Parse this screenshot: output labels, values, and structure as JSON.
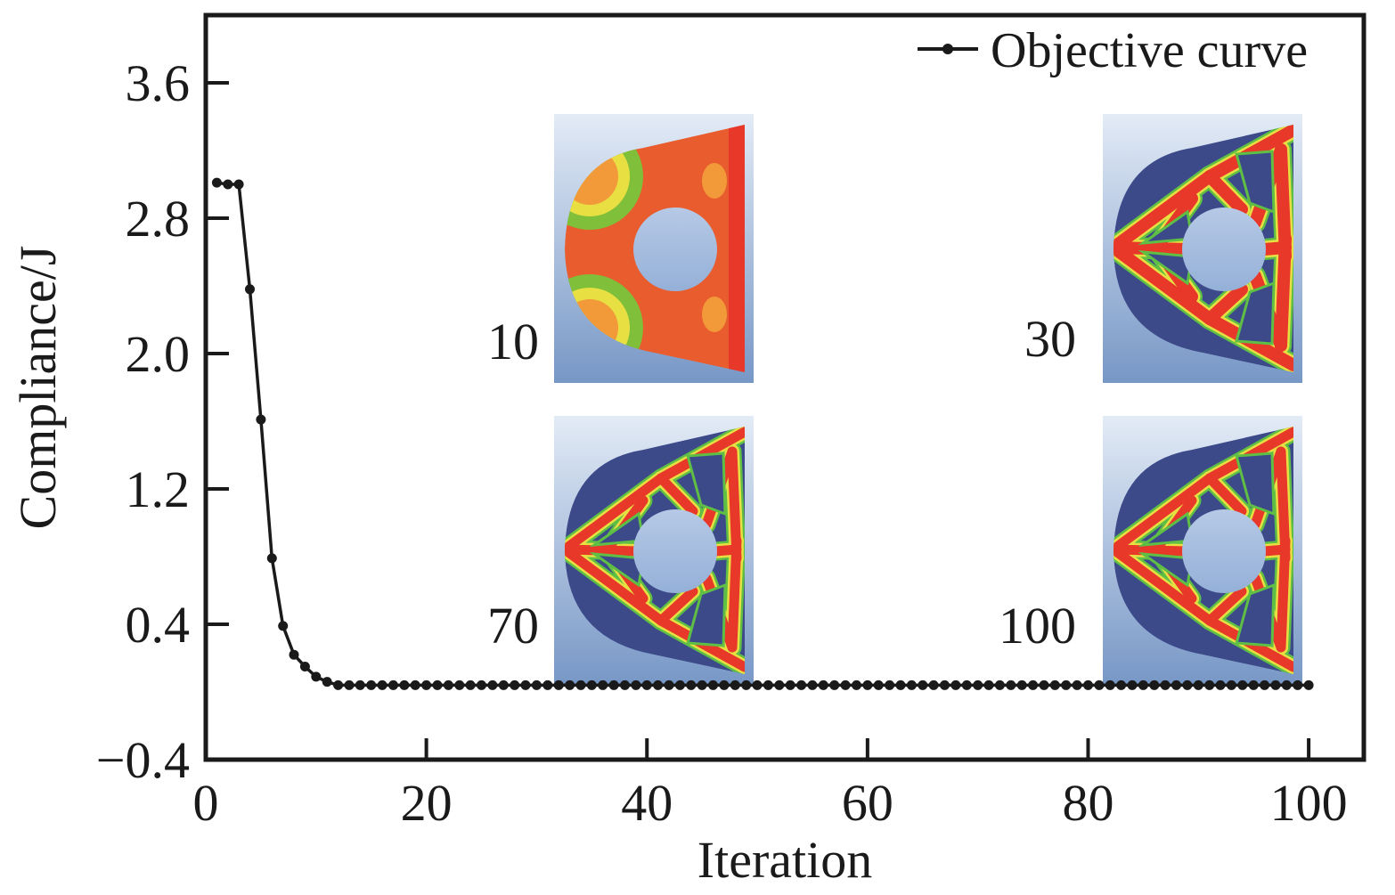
{
  "chart_data": {
    "type": "line",
    "title": "",
    "xlabel": "Iteration",
    "ylabel": "Compliance/J",
    "xlim": [
      0,
      105
    ],
    "ylim": [
      -0.4,
      4.0
    ],
    "xticks": [
      0,
      20,
      40,
      60,
      80,
      100
    ],
    "xtick_labels": [
      "0",
      "20",
      "40",
      "60",
      "80",
      "100"
    ],
    "yticks": [
      -0.4,
      0.4,
      1.2,
      2.0,
      2.8,
      3.6
    ],
    "ytick_labels": [
      "−0.4",
      "0.4",
      "1.2",
      "2.0",
      "2.8",
      "3.6"
    ],
    "grid": false,
    "legend_position": "top-right",
    "series": [
      {
        "name": "Objective curve",
        "color": "#1a1a1a",
        "x": [
          1,
          2,
          3,
          4,
          5,
          6,
          7,
          8,
          9,
          10,
          11,
          12,
          13,
          14,
          15,
          16,
          17,
          18,
          19,
          20,
          21,
          22,
          23,
          24,
          25,
          26,
          27,
          28,
          29,
          30,
          31,
          32,
          33,
          34,
          35,
          36,
          37,
          38,
          39,
          40,
          41,
          42,
          43,
          44,
          45,
          46,
          47,
          48,
          49,
          50,
          51,
          52,
          53,
          54,
          55,
          56,
          57,
          58,
          59,
          60,
          61,
          62,
          63,
          64,
          65,
          66,
          67,
          68,
          69,
          70,
          71,
          72,
          73,
          74,
          75,
          76,
          77,
          78,
          79,
          80,
          81,
          82,
          83,
          84,
          85,
          86,
          87,
          88,
          89,
          90,
          91,
          92,
          93,
          94,
          95,
          96,
          97,
          98,
          99,
          100
        ],
        "y": [
          3.01,
          3.0,
          3.0,
          2.38,
          1.61,
          0.79,
          0.39,
          0.22,
          0.15,
          0.09,
          0.06,
          0.04,
          0.04,
          0.04,
          0.04,
          0.04,
          0.04,
          0.04,
          0.04,
          0.04,
          0.04,
          0.04,
          0.04,
          0.04,
          0.04,
          0.04,
          0.04,
          0.04,
          0.04,
          0.04,
          0.04,
          0.04,
          0.04,
          0.04,
          0.04,
          0.04,
          0.04,
          0.04,
          0.04,
          0.04,
          0.04,
          0.04,
          0.04,
          0.04,
          0.04,
          0.04,
          0.04,
          0.04,
          0.04,
          0.04,
          0.04,
          0.04,
          0.04,
          0.04,
          0.04,
          0.04,
          0.04,
          0.04,
          0.04,
          0.04,
          0.04,
          0.04,
          0.04,
          0.04,
          0.04,
          0.04,
          0.04,
          0.04,
          0.04,
          0.04,
          0.04,
          0.04,
          0.04,
          0.04,
          0.04,
          0.04,
          0.04,
          0.04,
          0.04,
          0.04,
          0.04,
          0.04,
          0.04,
          0.04,
          0.04,
          0.04,
          0.04,
          0.04,
          0.04,
          0.04,
          0.04,
          0.04,
          0.04,
          0.04,
          0.04,
          0.04,
          0.04,
          0.04,
          0.04,
          0.04
        ]
      }
    ],
    "insets": [
      {
        "label": "10",
        "stage": "early",
        "description_colors": [
          "#e8542c",
          "#f29a3a",
          "#8ac43a",
          "#e8e043"
        ]
      },
      {
        "label": "30",
        "stage": "mid"
      },
      {
        "label": "70",
        "stage": "late"
      },
      {
        "label": "100",
        "stage": "final"
      }
    ],
    "colors": {
      "void": "#3c4a8a",
      "solid": "#e8382a",
      "edge_yellow": "#e8e043",
      "edge_green": "#5fbf45",
      "background_top": "#dfe8f4",
      "background_bottom": "#7b9cc8",
      "hole": "#a8bedf"
    }
  }
}
